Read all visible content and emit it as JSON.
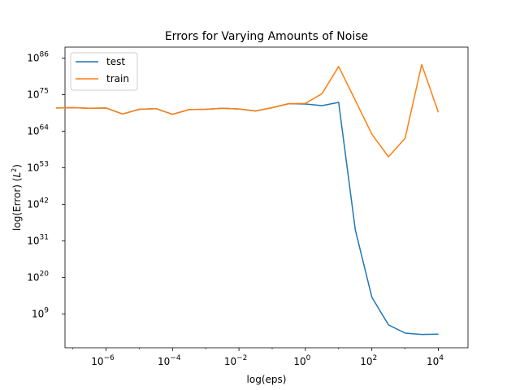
{
  "chart_data": {
    "type": "line",
    "title": "Errors for Varying Amounts of Noise",
    "xlabel": "log(eps)",
    "ylabel": "log(Error) (L²)",
    "x_scale": "log",
    "y_scale": "log",
    "xlim": [
      1e-08,
      100000.0
    ],
    "ylim_exponent": [
      1,
      90
    ],
    "grid": false,
    "legend_position": "top-left",
    "x_ticks": [
      {
        "value": 1e-06,
        "base": "10",
        "exp": "−6"
      },
      {
        "value": 0.0001,
        "base": "10",
        "exp": "−4"
      },
      {
        "value": 0.01,
        "base": "10",
        "exp": "−2"
      },
      {
        "value": 1,
        "base": "10",
        "exp": "0"
      },
      {
        "value": 100,
        "base": "10",
        "exp": "2"
      },
      {
        "value": 10000,
        "base": "10",
        "exp": "4"
      }
    ],
    "y_ticks": [
      {
        "exp_value": 9,
        "base": "10",
        "exp": "9"
      },
      {
        "exp_value": 20,
        "base": "10",
        "exp": "20"
      },
      {
        "exp_value": 31,
        "base": "10",
        "exp": "31"
      },
      {
        "exp_value": 42,
        "base": "10",
        "exp": "42"
      },
      {
        "exp_value": 53,
        "base": "10",
        "exp": "53"
      },
      {
        "exp_value": 64,
        "base": "10",
        "exp": "64"
      },
      {
        "exp_value": 75,
        "base": "10",
        "exp": "75"
      },
      {
        "exp_value": 86,
        "base": "10",
        "exp": "86"
      }
    ],
    "x_log10": [
      -7.5,
      -7.0,
      -6.5,
      -6.0,
      -5.5,
      -5.0,
      -4.5,
      -4.0,
      -3.5,
      -3.0,
      -2.5,
      -2.0,
      -1.5,
      -1.0,
      -0.5,
      0.0,
      0.5,
      1.0,
      1.5,
      2.0,
      2.5,
      3.0,
      3.5,
      4.0,
      4.5
    ],
    "series": [
      {
        "name": "test",
        "color": "#1f77b4",
        "log10_values": [
          71.0,
          71.1,
          70.9,
          71.0,
          69.2,
          70.6,
          70.8,
          69.1,
          70.5,
          70.6,
          70.9,
          70.7,
          70.1,
          71.1,
          72.3,
          72.2,
          71.7,
          72.7,
          34.3,
          14.0,
          5.7,
          3.2,
          2.8,
          2.9,
          null
        ],
        "log10_values_note": ""
      },
      {
        "name": "train",
        "color": "#ff7f0e",
        "log10_values": [
          71.0,
          71.1,
          70.9,
          71.0,
          69.2,
          70.6,
          70.8,
          69.1,
          70.5,
          70.6,
          70.9,
          70.7,
          70.1,
          71.1,
          72.3,
          72.4,
          75.3,
          83.5,
          73.3,
          63.1,
          56.3,
          61.9,
          84.1,
          69.7,
          null
        ]
      }
    ]
  }
}
